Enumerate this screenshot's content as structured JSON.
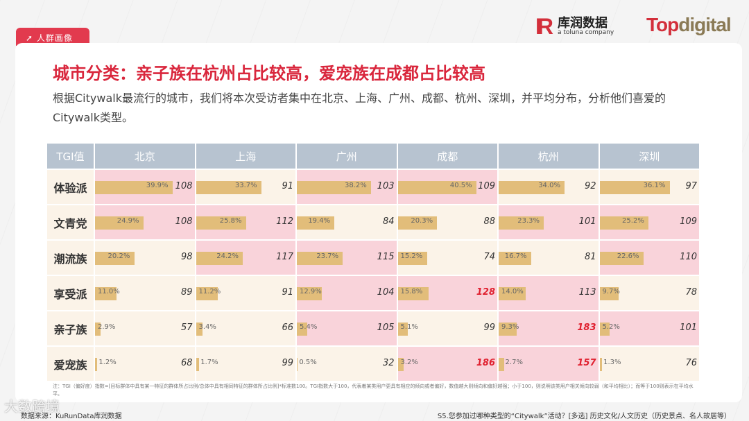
{
  "tag": "人群画像",
  "logos": {
    "kurun_cn": "库润数据",
    "kurun_en": "a toluna company",
    "topdigital_a": "Top",
    "topdigital_b": "digital"
  },
  "title": "城市分类：亲子族在杭州占比较高，爱宠族在成都占比较高",
  "description": "根据Citywalk最流行的城市，我们将本次受访者集中在北京、上海、广州、成都、杭州、深圳，并平均分布，分析他们喜爱的Citywalk类型。",
  "colors": {
    "accent": "#d9263c",
    "bar": "#e2bd7a",
    "highlight": "#f9d3da",
    "header": "#b7c3d0"
  },
  "table": {
    "corner": "TGI值",
    "cities": [
      "北京",
      "上海",
      "广州",
      "成都",
      "杭州",
      "深圳"
    ],
    "rows": [
      {
        "label": "体验派",
        "pct": [
          "39.9%",
          "33.7%",
          "38.2%",
          "40.5%",
          "34.0%",
          "36.1%"
        ],
        "tgi": [
          "108",
          "91",
          "103",
          "109",
          "92",
          "97"
        ]
      },
      {
        "label": "文青党",
        "pct": [
          "24.9%",
          "25.8%",
          "19.4%",
          "20.3%",
          "23.3%",
          "25.2%"
        ],
        "tgi": [
          "108",
          "112",
          "84",
          "88",
          "101",
          "109"
        ]
      },
      {
        "label": "潮流族",
        "pct": [
          "20.2%",
          "24.2%",
          "23.7%",
          "15.2%",
          "16.7%",
          "22.6%"
        ],
        "tgi": [
          "98",
          "117",
          "115",
          "74",
          "81",
          "110"
        ]
      },
      {
        "label": "享受派",
        "pct": [
          "11.0%",
          "11.2%",
          "12.9%",
          "15.8%",
          "14.0%",
          "9.7%"
        ],
        "tgi": [
          "89",
          "91",
          "104",
          "128",
          "113",
          "78"
        ]
      },
      {
        "label": "亲子族",
        "pct": [
          "2.9%",
          "3.4%",
          "5.4%",
          "5.1%",
          "9.3%",
          "5.2%"
        ],
        "tgi": [
          "57",
          "66",
          "105",
          "99",
          "183",
          "101"
        ]
      },
      {
        "label": "爱宠族",
        "pct": [
          "1.2%",
          "1.7%",
          "0.5%",
          "3.2%",
          "2.7%",
          "1.3%"
        ],
        "tgi": [
          "68",
          "99",
          "32",
          "186",
          "157",
          "76"
        ]
      }
    ]
  },
  "note": "注：TGI（偏好度）指数=[目标群体中具有某一特征的群体所占比例/总体中具有相同特征的群体所占比例]*标准数100。TGI指数大于100，代表着某类用户更具有相应的倾向或者偏好，数值越大则倾向和偏好越强；小于100，则说明该类用户相关倾向较弱（和平均相比）；而等于100则表示在平均水平。",
  "source": "数据来源：KuRunData库润数据",
  "question": "S5.您参加过哪种类型的“Citywalk”活动？[多选] 历史文化/人文历史（历史景点、名人故居等）",
  "watermark": "大数跨境"
}
